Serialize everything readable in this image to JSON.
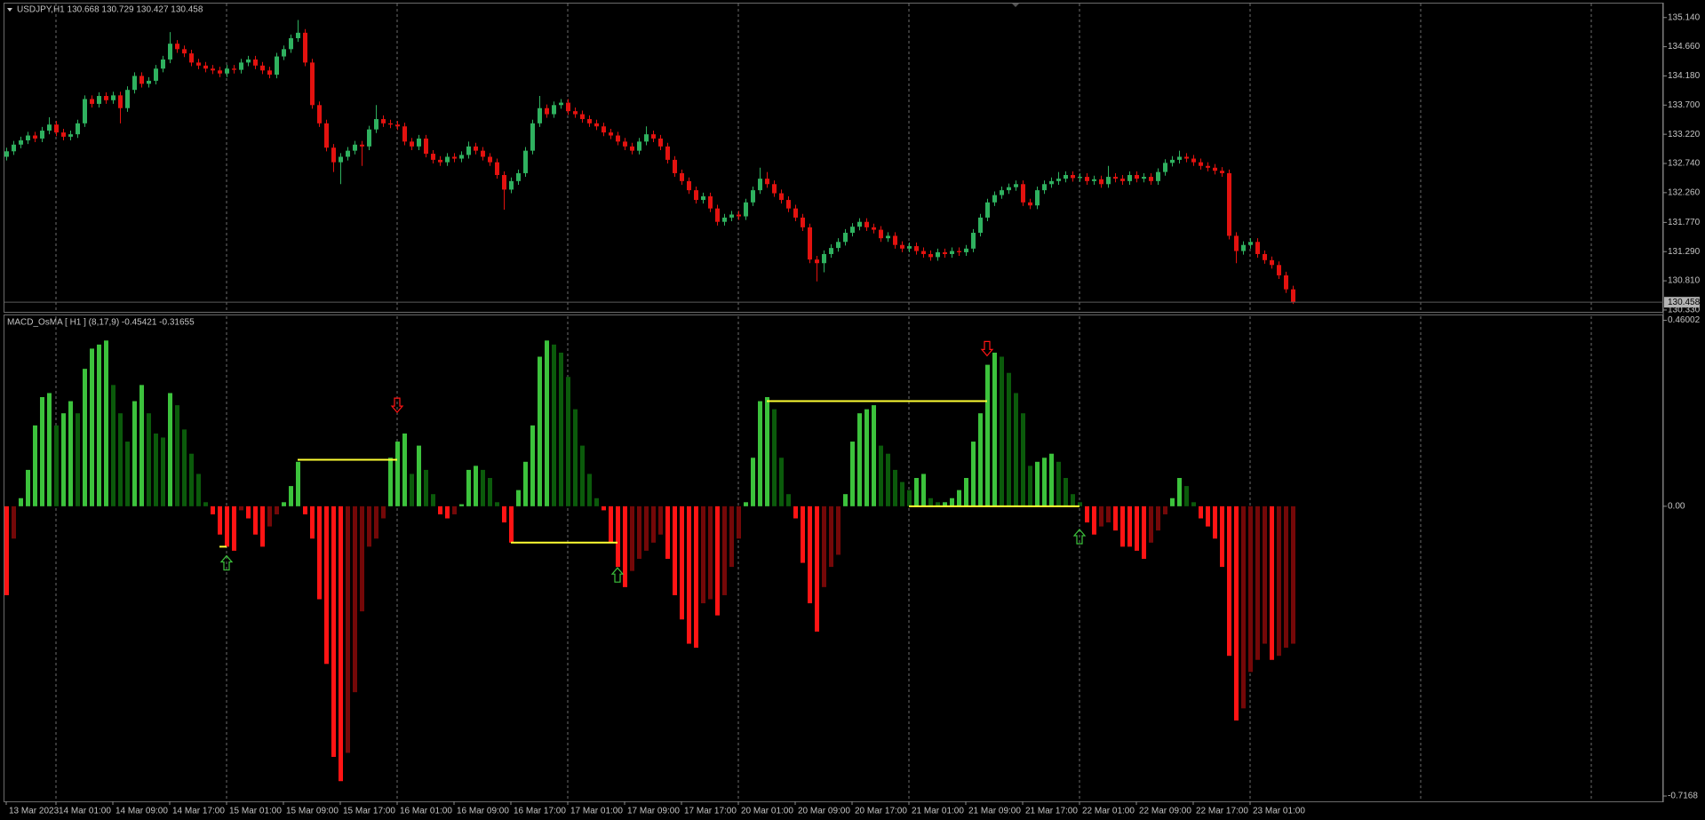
{
  "chart_data": [
    {
      "type": "candlestick",
      "title": "USDJPY,H1  130.668 130.729 130.427 130.458",
      "categories": [
        "13 Mar 2023",
        null,
        null,
        null,
        null,
        null,
        null,
        "14 Mar 01:00",
        null,
        null,
        null,
        null,
        null,
        null,
        null,
        "14 Mar 09:00",
        null,
        null,
        null,
        null,
        null,
        null,
        null,
        "14 Mar 17:00",
        null,
        null,
        null,
        null,
        null,
        null,
        null,
        "15 Mar 01:00",
        null,
        null,
        null,
        null,
        null,
        null,
        null,
        "15 Mar 09:00",
        null,
        null,
        null,
        null,
        null,
        null,
        null,
        "15 Mar 17:00",
        null,
        null,
        null,
        null,
        null,
        null,
        null,
        "16 Mar 01:00",
        null,
        null,
        null,
        null,
        null,
        null,
        null,
        "16 Mar 09:00",
        null,
        null,
        null,
        null,
        null,
        null,
        null,
        "16 Mar 17:00",
        null,
        null,
        null,
        null,
        null,
        null,
        null,
        "17 Mar 01:00",
        null,
        null,
        null,
        null,
        null,
        null,
        null,
        "17 Mar 09:00",
        null,
        null,
        null,
        null,
        null,
        null,
        null,
        "17 Mar 17:00",
        null,
        null,
        null,
        null,
        null,
        null,
        null,
        "20 Mar 01:00",
        null,
        null,
        null,
        null,
        null,
        null,
        null,
        "20 Mar 09:00",
        null,
        null,
        null,
        null,
        null,
        null,
        null,
        "20 Mar 17:00",
        null,
        null,
        null,
        null,
        null,
        null,
        null,
        "21 Mar 01:00",
        null,
        null,
        null,
        null,
        null,
        null,
        null,
        "21 Mar 09:00",
        null,
        null,
        null,
        null,
        null,
        null,
        null,
        "21 Mar 17:00",
        null,
        null,
        null,
        null,
        null,
        null,
        null,
        "22 Mar 01:00",
        null,
        null,
        null,
        null,
        null,
        null,
        null,
        "22 Mar 09:00",
        null,
        null,
        null,
        null,
        null,
        null,
        null,
        "22 Mar 17:00",
        null,
        null,
        null,
        null,
        null,
        null,
        null,
        "23 Mar 01:00",
        null,
        null,
        null,
        null,
        null,
        null
      ],
      "open": [
        132.85,
        132.94,
        133.05,
        133.12,
        133.2,
        133.15,
        133.28,
        133.38,
        133.25,
        133.18,
        133.22,
        133.4,
        133.8,
        133.72,
        133.85,
        133.78,
        133.86,
        133.65,
        133.95,
        134.18,
        134.05,
        134.1,
        134.3,
        134.45,
        134.71,
        134.62,
        134.55,
        134.4,
        134.35,
        134.3,
        134.27,
        134.22,
        134.3,
        134.28,
        134.4,
        134.45,
        134.35,
        134.27,
        134.2,
        134.5,
        134.62,
        134.8,
        134.89,
        134.4,
        133.7,
        133.4,
        133.0,
        132.76,
        132.85,
        132.95,
        133.05,
        133.02,
        133.3,
        133.47,
        133.4,
        133.38,
        133.35,
        133.1,
        133.02,
        133.15,
        132.9,
        132.8,
        132.76,
        132.85,
        132.82,
        132.88,
        133.02,
        132.95,
        132.85,
        132.76,
        132.55,
        132.31,
        132.45,
        132.58,
        132.95,
        133.4,
        133.65,
        133.55,
        133.7,
        133.74,
        133.6,
        133.55,
        133.47,
        133.4,
        133.35,
        133.25,
        133.2,
        133.1,
        133.02,
        132.95,
        133.1,
        133.22,
        133.15,
        133.02,
        132.8,
        132.58,
        132.45,
        132.3,
        132.14,
        132.2,
        132.0,
        131.78,
        131.85,
        131.9,
        131.87,
        132.1,
        132.3,
        132.49,
        132.4,
        132.25,
        132.14,
        132.0,
        131.85,
        131.69,
        131.16,
        131.1,
        131.25,
        131.35,
        131.45,
        131.6,
        131.7,
        131.78,
        131.69,
        131.65,
        131.51,
        131.55,
        131.4,
        131.34,
        131.38,
        131.3,
        131.25,
        131.2,
        131.28,
        131.25,
        131.3,
        131.28,
        131.34,
        131.6,
        131.85,
        132.1,
        132.22,
        132.3,
        132.35,
        132.4,
        132.1,
        132.05,
        132.3,
        132.4,
        132.45,
        132.49,
        132.55,
        132.5,
        132.52,
        132.45,
        132.48,
        132.4,
        132.52,
        132.49,
        132.45,
        132.55,
        132.49,
        132.52,
        132.45,
        132.6,
        132.75,
        132.8,
        132.85,
        132.82,
        132.76,
        132.7,
        132.67,
        132.62,
        132.58,
        131.55,
        131.3,
        131.4,
        131.45,
        131.25,
        131.15,
        131.07,
        130.9,
        130.67
      ],
      "high": [
        133.0,
        133.11,
        133.18,
        133.26,
        133.26,
        133.34,
        133.5,
        133.44,
        133.31,
        133.28,
        133.46,
        133.86,
        133.86,
        133.91,
        133.91,
        133.92,
        133.92,
        134.01,
        134.24,
        134.24,
        134.16,
        134.36,
        134.51,
        134.9,
        134.77,
        134.68,
        134.61,
        134.46,
        134.41,
        134.36,
        134.33,
        134.36,
        134.36,
        134.46,
        134.51,
        134.51,
        134.41,
        134.33,
        134.56,
        134.68,
        134.86,
        135.1,
        134.95,
        134.46,
        133.76,
        133.46,
        133.06,
        132.91,
        133.01,
        133.11,
        133.11,
        133.36,
        133.7,
        133.53,
        133.46,
        133.44,
        133.41,
        133.16,
        133.21,
        133.21,
        132.96,
        132.86,
        132.91,
        132.91,
        132.94,
        133.1,
        133.08,
        133.01,
        132.91,
        132.82,
        132.61,
        132.51,
        132.64,
        133.01,
        133.46,
        133.85,
        133.71,
        133.76,
        133.8,
        133.8,
        133.66,
        133.61,
        133.53,
        133.46,
        133.41,
        133.31,
        133.26,
        133.16,
        133.08,
        133.16,
        133.35,
        133.28,
        133.21,
        133.08,
        132.86,
        132.64,
        132.51,
        132.36,
        132.26,
        132.26,
        132.06,
        131.91,
        131.96,
        131.96,
        132.16,
        132.36,
        132.67,
        132.6,
        132.46,
        132.31,
        132.2,
        132.06,
        131.91,
        131.75,
        131.22,
        131.31,
        131.41,
        131.51,
        131.66,
        131.76,
        131.84,
        131.84,
        131.75,
        131.71,
        131.61,
        131.61,
        131.46,
        131.44,
        131.44,
        131.36,
        131.31,
        131.34,
        131.34,
        131.36,
        131.36,
        131.4,
        131.66,
        131.91,
        132.16,
        132.28,
        132.36,
        132.41,
        132.46,
        132.46,
        132.16,
        132.36,
        132.46,
        132.51,
        132.6,
        132.61,
        132.61,
        132.58,
        132.58,
        132.54,
        132.54,
        132.7,
        132.58,
        132.55,
        132.61,
        132.61,
        132.58,
        132.58,
        132.66,
        132.81,
        132.86,
        132.95,
        132.91,
        132.88,
        132.82,
        132.76,
        132.73,
        132.68,
        132.64,
        131.61,
        131.46,
        131.51,
        131.51,
        131.31,
        131.21,
        131.13,
        130.96,
        130.73
      ],
      "low": [
        132.79,
        132.88,
        132.99,
        133.06,
        133.09,
        133.09,
        133.22,
        133.19,
        133.12,
        133.12,
        133.16,
        133.34,
        133.66,
        133.66,
        133.72,
        133.72,
        133.4,
        133.59,
        133.89,
        133.99,
        133.99,
        134.04,
        134.24,
        134.39,
        134.56,
        134.49,
        134.34,
        134.29,
        134.24,
        134.21,
        134.16,
        134.16,
        134.22,
        134.22,
        134.34,
        134.29,
        134.21,
        134.14,
        134.14,
        134.44,
        134.56,
        134.74,
        134.34,
        133.64,
        133.34,
        132.94,
        132.6,
        132.4,
        132.79,
        132.89,
        132.7,
        132.96,
        133.24,
        133.34,
        133.32,
        133.29,
        133.04,
        132.96,
        132.96,
        132.84,
        132.74,
        132.7,
        132.7,
        132.76,
        132.76,
        132.82,
        132.89,
        132.79,
        132.7,
        132.49,
        131.98,
        132.25,
        132.39,
        132.52,
        132.89,
        133.34,
        133.49,
        133.49,
        133.64,
        133.54,
        133.49,
        133.41,
        133.34,
        133.29,
        133.19,
        133.14,
        133.04,
        132.96,
        132.89,
        132.89,
        133.04,
        133.09,
        132.96,
        132.74,
        132.52,
        132.39,
        132.24,
        132.08,
        132.08,
        131.94,
        131.72,
        131.72,
        131.79,
        131.81,
        131.81,
        132.04,
        132.24,
        132.34,
        132.19,
        132.08,
        131.94,
        131.79,
        131.63,
        131.1,
        130.8,
        130.95,
        131.19,
        131.29,
        131.39,
        131.54,
        131.64,
        131.63,
        131.59,
        131.45,
        131.45,
        131.34,
        131.28,
        131.28,
        131.24,
        131.19,
        131.14,
        131.14,
        131.19,
        131.19,
        131.22,
        131.22,
        131.28,
        131.54,
        131.79,
        132.04,
        132.16,
        132.24,
        132.29,
        132.04,
        131.99,
        131.99,
        132.24,
        132.34,
        132.39,
        132.43,
        132.44,
        132.44,
        132.39,
        132.39,
        132.34,
        132.34,
        132.43,
        132.39,
        132.39,
        132.43,
        132.43,
        132.39,
        132.39,
        132.54,
        132.69,
        132.74,
        132.76,
        132.7,
        132.64,
        132.61,
        132.56,
        132.52,
        131.49,
        131.1,
        131.24,
        131.34,
        131.19,
        131.09,
        131.01,
        130.84,
        130.61,
        130.43
      ],
      "close": [
        132.94,
        133.05,
        133.12,
        133.2,
        133.15,
        133.28,
        133.38,
        133.25,
        133.18,
        133.22,
        133.4,
        133.8,
        133.72,
        133.85,
        133.78,
        133.86,
        133.65,
        133.95,
        134.18,
        134.05,
        134.1,
        134.3,
        134.45,
        134.71,
        134.62,
        134.55,
        134.4,
        134.35,
        134.3,
        134.27,
        134.22,
        134.3,
        134.28,
        134.4,
        134.45,
        134.35,
        134.27,
        134.2,
        134.5,
        134.62,
        134.8,
        134.89,
        134.4,
        133.7,
        133.4,
        133.0,
        132.76,
        132.85,
        132.95,
        133.05,
        133.02,
        133.3,
        133.47,
        133.4,
        133.38,
        133.35,
        133.1,
        133.02,
        133.15,
        132.9,
        132.8,
        132.76,
        132.85,
        132.82,
        132.88,
        133.02,
        132.95,
        132.85,
        132.76,
        132.55,
        132.31,
        132.45,
        132.58,
        132.95,
        133.4,
        133.65,
        133.55,
        133.7,
        133.74,
        133.6,
        133.55,
        133.47,
        133.4,
        133.35,
        133.25,
        133.2,
        133.1,
        133.02,
        132.95,
        133.1,
        133.22,
        133.15,
        133.02,
        132.8,
        132.58,
        132.45,
        132.3,
        132.14,
        132.2,
        132.0,
        131.78,
        131.85,
        131.9,
        131.87,
        132.1,
        132.3,
        132.49,
        132.4,
        132.25,
        132.14,
        132.0,
        131.85,
        131.69,
        131.16,
        131.1,
        131.25,
        131.35,
        131.45,
        131.6,
        131.7,
        131.78,
        131.69,
        131.65,
        131.51,
        131.55,
        131.4,
        131.34,
        131.38,
        131.3,
        131.25,
        131.2,
        131.28,
        131.25,
        131.3,
        131.28,
        131.34,
        131.6,
        131.85,
        132.1,
        132.22,
        132.3,
        132.35,
        132.4,
        132.1,
        132.05,
        132.3,
        132.4,
        132.45,
        132.49,
        132.55,
        132.5,
        132.52,
        132.45,
        132.48,
        132.4,
        132.52,
        132.49,
        132.45,
        132.55,
        132.49,
        132.52,
        132.45,
        132.6,
        132.75,
        132.8,
        132.85,
        132.82,
        132.76,
        132.7,
        132.67,
        132.62,
        132.58,
        131.55,
        131.3,
        131.4,
        131.45,
        131.25,
        131.15,
        131.07,
        130.9,
        130.67,
        130.46
      ],
      "colors": {
        "up": "#2fb15f",
        "down": "#e3120f"
      },
      "ylim": [
        130.3,
        135.37
      ],
      "yticks": [
        {
          "value": 135.14,
          "label": "135.140"
        },
        {
          "value": 134.66,
          "label": "134.660"
        },
        {
          "value": 134.18,
          "label": "134.180"
        },
        {
          "value": 133.7,
          "label": "133.700"
        },
        {
          "value": 133.22,
          "label": "133.220"
        },
        {
          "value": 132.74,
          "label": "132.740"
        },
        {
          "value": 132.26,
          "label": "132.260"
        },
        {
          "value": 131.77,
          "label": "131.770"
        },
        {
          "value": 131.29,
          "label": "131.290"
        },
        {
          "value": 130.81,
          "label": "130.810"
        },
        {
          "value": 130.33,
          "label": "130.330"
        }
      ],
      "current_price": 130.458
    },
    {
      "type": "histogram",
      "title": "MACD_OsMA [ H1 ] (8,17,9)  -0.45421 -0.31655",
      "values": [
        -0.22,
        -0.08,
        0.02,
        0.09,
        0.2,
        0.27,
        0.28,
        0.2,
        0.23,
        0.26,
        0.23,
        0.34,
        0.39,
        0.4,
        0.41,
        0.3,
        0.23,
        0.16,
        0.26,
        0.3,
        0.23,
        0.18,
        0.17,
        0.28,
        0.25,
        0.19,
        0.13,
        0.08,
        0.01,
        -0.02,
        -0.07,
        -0.1,
        -0.11,
        -0.01,
        -0.03,
        -0.07,
        -0.1,
        -0.05,
        -0.02,
        0.01,
        0.05,
        0.11,
        -0.02,
        -0.08,
        -0.23,
        -0.39,
        -0.62,
        -0.68,
        -0.61,
        -0.46,
        -0.26,
        -0.1,
        -0.08,
        -0.03,
        0.12,
        0.16,
        0.18,
        0.08,
        0.15,
        0.09,
        0.03,
        -0.02,
        -0.03,
        -0.02,
        0.005,
        0.09,
        0.1,
        0.09,
        0.07,
        0.01,
        -0.04,
        -0.09,
        0.04,
        0.11,
        0.2,
        0.37,
        0.41,
        0.4,
        0.38,
        0.32,
        0.24,
        0.15,
        0.08,
        0.02,
        -0.01,
        -0.09,
        -0.15,
        -0.2,
        -0.16,
        -0.13,
        -0.11,
        -0.09,
        -0.07,
        -0.13,
        -0.22,
        -0.28,
        -0.34,
        -0.35,
        -0.24,
        -0.23,
        -0.27,
        -0.22,
        -0.15,
        -0.08,
        0.01,
        0.12,
        0.26,
        0.27,
        0.24,
        0.12,
        0.03,
        -0.03,
        -0.14,
        -0.24,
        -0.31,
        -0.2,
        -0.15,
        -0.12,
        0.03,
        0.16,
        0.23,
        0.24,
        0.25,
        0.15,
        0.13,
        0.09,
        0.06,
        0.04,
        0.07,
        0.08,
        0.02,
        0.01,
        0.01,
        0.02,
        0.04,
        0.07,
        0.16,
        0.23,
        0.35,
        0.38,
        0.37,
        0.33,
        0.28,
        0.23,
        0.1,
        0.11,
        0.12,
        0.13,
        0.11,
        0.07,
        0.03,
        0.01,
        -0.04,
        -0.07,
        -0.05,
        -0.04,
        -0.06,
        -0.1,
        -0.1,
        -0.11,
        -0.13,
        -0.09,
        -0.06,
        -0.02,
        0.02,
        0.07,
        0.05,
        0.01,
        -0.03,
        -0.05,
        -0.08,
        -0.15,
        -0.37,
        -0.53,
        -0.5,
        -0.41,
        -0.38,
        -0.34,
        -0.38,
        -0.37,
        -0.35,
        -0.34
      ],
      "colors": {
        "up_rising": "#3cc23c",
        "up_falling": "#0b5a0b",
        "down_falling": "#ff1414",
        "down_rising": "#740808",
        "lines": "#ffff33"
      },
      "lines": [
        {
          "x": [
            41,
            55
          ],
          "y": [
            0.115,
            0.115
          ]
        },
        {
          "x": [
            30,
            31
          ],
          "y": [
            -0.1,
            -0.1
          ]
        },
        {
          "x": [
            71,
            86
          ],
          "y": [
            -0.09,
            -0.09
          ]
        },
        {
          "x": [
            107,
            138
          ],
          "y": [
            0.26,
            0.26
          ]
        },
        {
          "x": [
            127,
            151
          ],
          "y": [
            0,
            0
          ]
        }
      ],
      "signals": [
        {
          "x": 31,
          "y": -0.14,
          "dir": "up"
        },
        {
          "x": 55,
          "y": 0.25,
          "dir": "down"
        },
        {
          "x": 86,
          "y": -0.17,
          "dir": "up"
        },
        {
          "x": 138,
          "y": 0.39,
          "dir": "down"
        },
        {
          "x": 151,
          "y": -0.075,
          "dir": "up"
        }
      ],
      "ylim": [
        -0.73,
        0.47
      ],
      "yticks": [
        0.46002,
        {
          "value": 0,
          "label": "0.00"
        },
        -0.7168
      ]
    }
  ]
}
